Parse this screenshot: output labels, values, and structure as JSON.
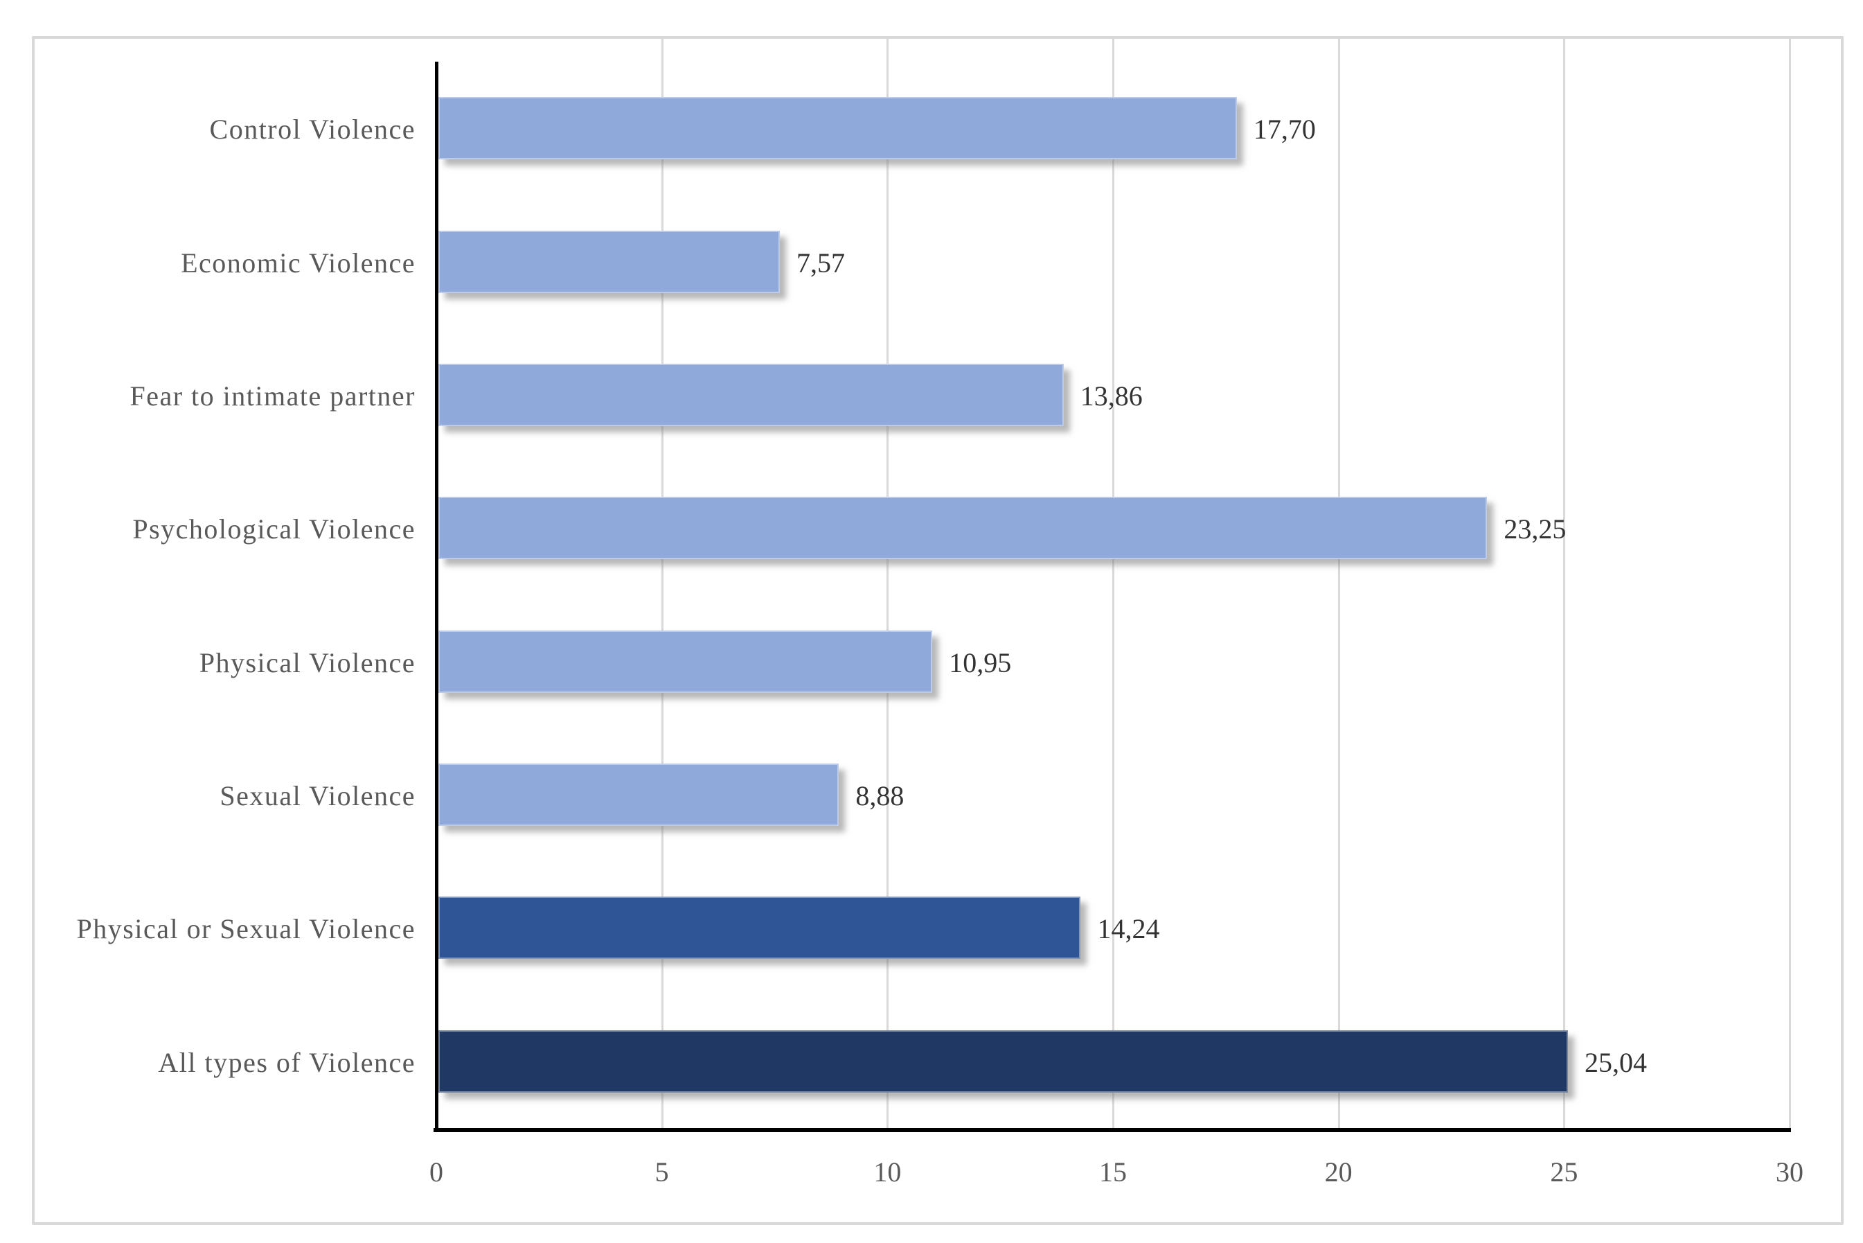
{
  "chart_data": {
    "type": "bar",
    "orientation": "horizontal",
    "title": "",
    "xlabel": "",
    "ylabel": "",
    "categories": [
      "Control Violence",
      "Economic Violence",
      "Fear to intimate partner",
      "Psychological Violence",
      "Physical Violence",
      "Sexual Violence",
      "Physical or Sexual Violence",
      "All types of Violence"
    ],
    "values": [
      17.7,
      7.57,
      13.86,
      23.25,
      10.95,
      8.88,
      14.24,
      25.04
    ],
    "value_labels": [
      "17,70",
      "7,57",
      "13,86",
      "23,25",
      "10,95",
      "8,88",
      "14,24",
      "25,04"
    ],
    "bar_colors": [
      "#8FA9DB",
      "#8FA9DB",
      "#8FA9DB",
      "#8FA9DB",
      "#8FA9DB",
      "#8FA9DB",
      "#2F5597",
      "#1F3864"
    ],
    "xlim": [
      0,
      30
    ],
    "x_ticks": [
      "0",
      "5",
      "10",
      "15",
      "20",
      "25",
      "30"
    ],
    "grid": true,
    "legend": false
  },
  "colors": {
    "bar_light": "#8FA9DB",
    "bar_medium": "#2F5597",
    "bar_dark": "#1F3864",
    "gridline": "#D9D9D9",
    "frame_border": "#D9D9D9",
    "axis_line": "#000000",
    "category_text": "#595959",
    "value_text": "#333333",
    "tick_text": "#595959",
    "background": "#FFFFFF"
  }
}
